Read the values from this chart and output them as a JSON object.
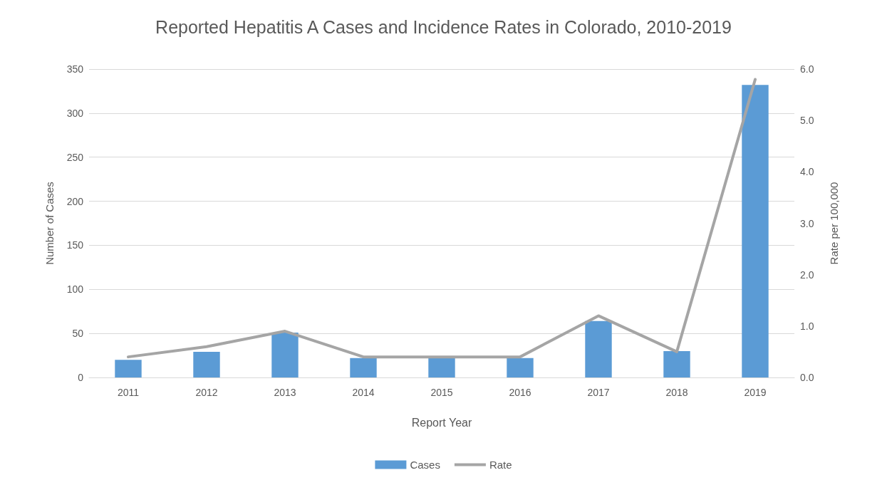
{
  "chart_data": {
    "type": "bar",
    "title": "Reported Hepatitis A Cases and Incidence Rates in Colorado, 2010-2019",
    "xlabel": "Report Year",
    "ylabel": "Number of Cases",
    "y2label": "Rate per 100,000",
    "categories": [
      "2011",
      "2012",
      "2013",
      "2014",
      "2015",
      "2016",
      "2017",
      "2018",
      "2019"
    ],
    "series": [
      {
        "name": "Cases",
        "color": "#5b9bd5",
        "values": [
          20,
          29,
          51,
          22,
          22,
          22,
          64,
          30,
          332
        ]
      },
      {
        "name": "Rate",
        "type": "line",
        "axis": "y2",
        "color": "#a5a5a5",
        "marker": "none",
        "values": [
          0.4,
          0.6,
          0.9,
          0.4,
          0.4,
          0.4,
          1.2,
          0.5,
          5.8
        ]
      }
    ],
    "ylim": [
      0,
      350
    ],
    "yticks": [
      0,
      50,
      100,
      150,
      200,
      250,
      300,
      350
    ],
    "y2lim": [
      0,
      6
    ],
    "y2ticks": [
      {
        "value": 0,
        "label": "0.0"
      },
      {
        "value": 1,
        "label": "1.0"
      },
      {
        "value": 2,
        "label": "2.0"
      },
      {
        "value": 3,
        "label": "3.0"
      },
      {
        "value": 4,
        "label": "4.0"
      },
      {
        "value": 5,
        "label": "5.0"
      },
      {
        "value": 6,
        "label": "6.0"
      }
    ],
    "grid": "y",
    "legend": "bottom"
  }
}
